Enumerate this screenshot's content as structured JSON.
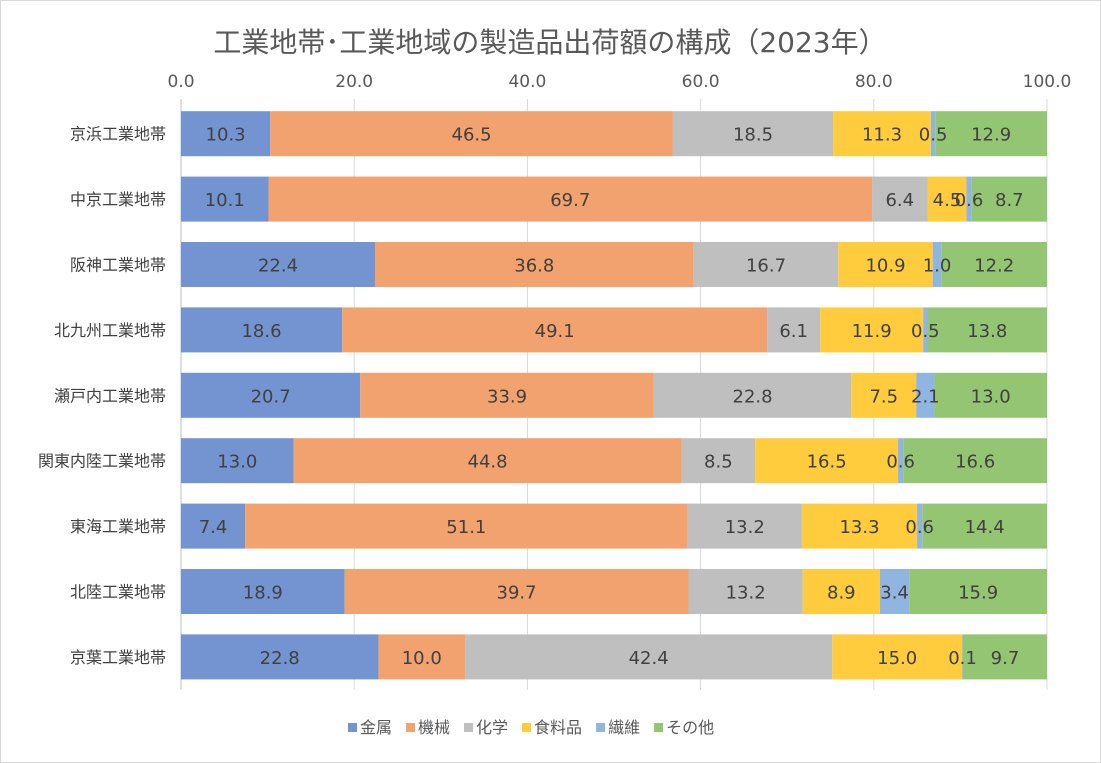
{
  "chart_data": {
    "type": "bar",
    "orientation": "horizontal",
    "stacked": true,
    "title": "工業地帯･工業地域の製造品出荷額の構成（2023年）",
    "xlim": [
      0,
      100
    ],
    "xticks": [
      "0.0",
      "20.0",
      "40.0",
      "60.0",
      "80.0",
      "100.0"
    ],
    "categories": [
      "京浜工業地帯",
      "中京工業地帯",
      "阪神工業地帯",
      "北九州工業地帯",
      "瀬戸内工業地帯",
      "関東内陸工業地帯",
      "東海工業地帯",
      "北陸工業地帯",
      "京葉工業地帯"
    ],
    "series": [
      {
        "name": "金属",
        "color": "#7394D1",
        "values": [
          10.3,
          10.1,
          22.4,
          18.6,
          20.7,
          13.0,
          7.4,
          18.9,
          22.8
        ],
        "labels": [
          "10.3",
          "10.1",
          "22.4",
          "18.6",
          "20.7",
          "13.0",
          "7.4",
          "18.9",
          "22.8"
        ]
      },
      {
        "name": "機械",
        "color": "#F1A26E",
        "values": [
          46.5,
          69.7,
          36.8,
          49.1,
          33.9,
          44.8,
          51.1,
          39.7,
          10.0
        ],
        "labels": [
          "46.5",
          "69.7",
          "36.8",
          "49.1",
          "33.9",
          "44.8",
          "51.1",
          "39.7",
          "10.0"
        ]
      },
      {
        "name": "化学",
        "color": "#BFBFBF",
        "values": [
          18.5,
          6.4,
          16.7,
          6.1,
          22.8,
          8.5,
          13.2,
          13.2,
          42.4
        ],
        "labels": [
          "18.5",
          "6.4",
          "16.7",
          "6.1",
          "22.8",
          "8.5",
          "13.2",
          "13.2",
          "42.4"
        ]
      },
      {
        "name": "食料品",
        "color": "#FFCC3D",
        "values": [
          11.3,
          4.5,
          10.9,
          11.9,
          7.5,
          16.5,
          13.3,
          8.9,
          15.0
        ],
        "labels": [
          "11.3",
          "4.5",
          "10.9",
          "11.9",
          "7.5",
          "16.5",
          "13.3",
          "8.9",
          "15.0"
        ]
      },
      {
        "name": "繊維",
        "color": "#8FB5E0",
        "values": [
          0.5,
          0.6,
          1.0,
          0.5,
          2.1,
          0.6,
          0.6,
          3.4,
          0.1
        ],
        "labels": [
          "0.5",
          "0.6",
          "1.0",
          "0.5",
          "2.1",
          "0.6",
          "0.6",
          "3.4",
          "0.1"
        ]
      },
      {
        "name": "その他",
        "color": "#93C572",
        "values": [
          12.9,
          8.7,
          12.2,
          13.8,
          13.0,
          16.6,
          14.4,
          15.9,
          9.7
        ],
        "labels": [
          "12.9",
          "8.7",
          "12.2",
          "13.8",
          "13.0",
          "16.6",
          "14.4",
          "15.9",
          "9.7"
        ]
      }
    ],
    "grid": true,
    "legend": "bottom",
    "data_labels": true
  }
}
